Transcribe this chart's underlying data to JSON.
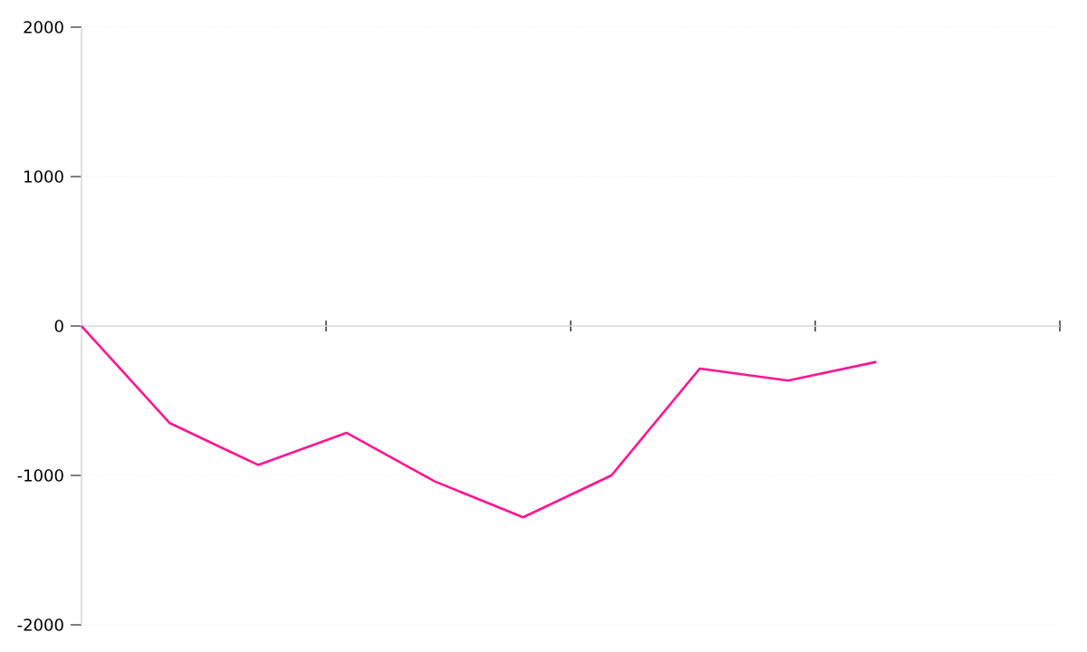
{
  "chart_data": {
    "type": "line",
    "categories": [
      null,
      null,
      null,
      null,
      null,
      null,
      null,
      null,
      null,
      null
    ],
    "series": [
      {
        "color": "#ff1493",
        "values": [
          0,
          -650,
          -930,
          -715,
          -1040,
          -1280,
          -1000,
          -285,
          -365,
          -240
        ]
      }
    ],
    "ylim": [
      -2000,
      2000
    ],
    "yticks": [
      -2000,
      -1000,
      0,
      1000,
      2000
    ],
    "grid": "y",
    "tick_labels": "y",
    "marker": "none",
    "line_style": "solid"
  }
}
